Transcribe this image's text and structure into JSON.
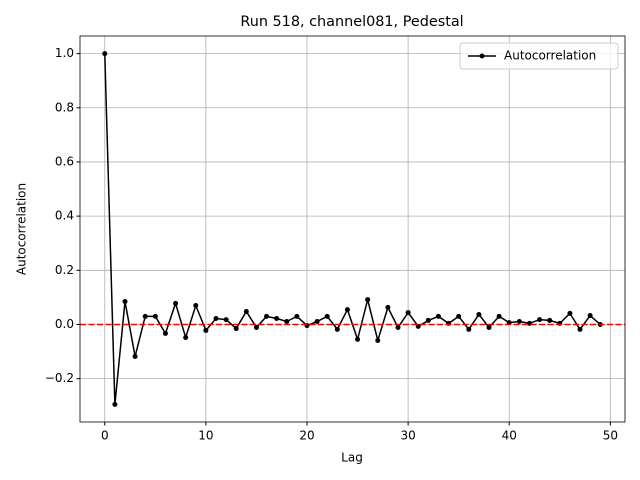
{
  "chart_data": {
    "type": "line",
    "title": "Run 518, channel081, Pedestal",
    "xlabel": "Lag",
    "ylabel": "Autocorrelation",
    "x": [
      0,
      1,
      2,
      3,
      4,
      5,
      6,
      7,
      8,
      9,
      10,
      11,
      12,
      13,
      14,
      15,
      16,
      17,
      18,
      19,
      20,
      21,
      22,
      23,
      24,
      25,
      26,
      27,
      28,
      29,
      30,
      31,
      32,
      33,
      34,
      35,
      36,
      37,
      38,
      39,
      40,
      41,
      42,
      43,
      44,
      45,
      46,
      47,
      48,
      49
    ],
    "series": [
      {
        "name": "Autocorrelation",
        "color": "#000000",
        "values": [
          1.0,
          -0.295,
          0.085,
          -0.118,
          0.03,
          0.03,
          -0.033,
          0.078,
          -0.048,
          0.07,
          -0.022,
          0.022,
          0.018,
          -0.015,
          0.048,
          -0.011,
          0.03,
          0.022,
          0.011,
          0.03,
          -0.004,
          0.011,
          0.03,
          -0.018,
          0.055,
          -0.055,
          0.092,
          -0.059,
          0.063,
          -0.011,
          0.044,
          -0.007,
          0.015,
          0.03,
          0.004,
          0.03,
          -0.018,
          0.037,
          -0.011,
          0.03,
          0.007,
          0.011,
          0.004,
          0.018,
          0.015,
          0.004,
          0.041,
          -0.018,
          0.033,
          0.0
        ]
      }
    ],
    "hline": {
      "value": 0,
      "color": "#ff0000"
    },
    "xlim": [
      -2.45,
      51.45
    ],
    "ylim": [
      -0.36,
      1.065
    ],
    "xticks": [
      0,
      10,
      20,
      30,
      40,
      50
    ],
    "yticks": [
      {
        "value": -0.2,
        "label": "−0.2"
      },
      {
        "value": 0,
        "label": "0.0"
      },
      {
        "value": 0.2,
        "label": "0.2"
      },
      {
        "value": 0.4,
        "label": "0.4"
      },
      {
        "value": 0.6,
        "label": "0.6"
      },
      {
        "value": 0.8,
        "label": "0.8"
      },
      {
        "value": 1.0,
        "label": "1.0"
      }
    ],
    "grid": true,
    "legend": "upper-right"
  }
}
